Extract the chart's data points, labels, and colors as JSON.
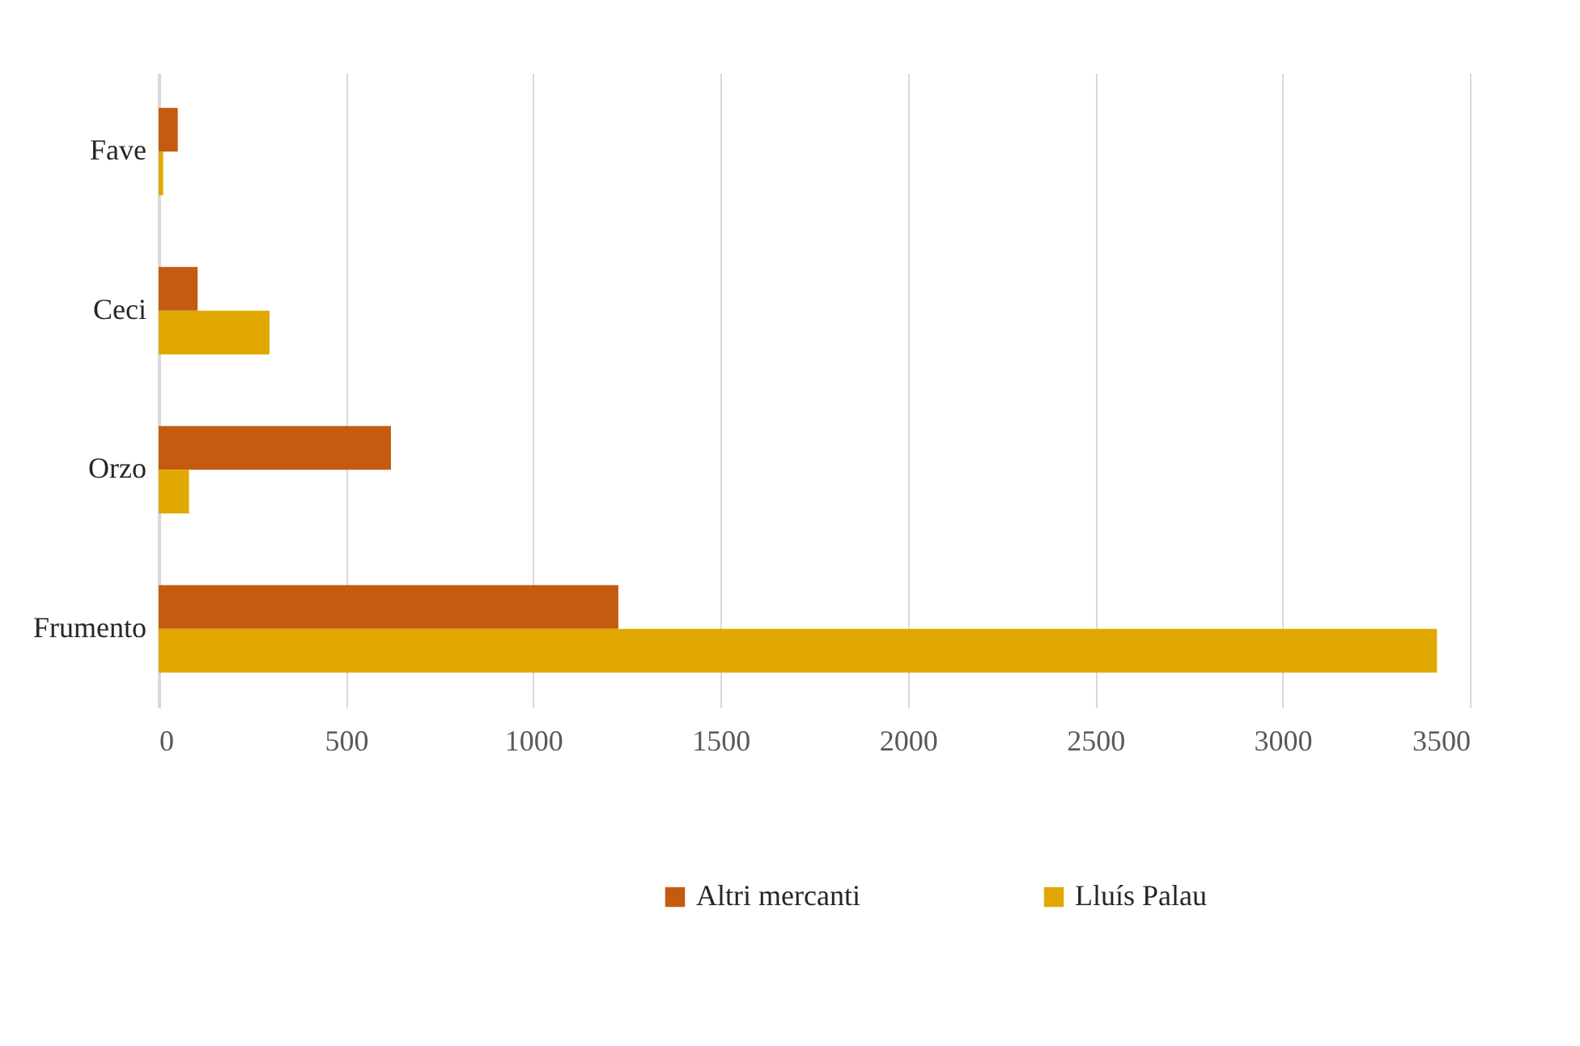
{
  "chart_data": {
    "type": "bar",
    "orientation": "horizontal",
    "categories": [
      "Fave",
      "Ceci",
      "Orzo",
      "Frumento"
    ],
    "series": [
      {
        "name": "Altri mercanti",
        "color": "#c55a11",
        "values": [
          51,
          104,
          620,
          1227
        ]
      },
      {
        "name": "Lluís Palau",
        "color": "#e0a800",
        "values": [
          12,
          296,
          81,
          3412
        ]
      }
    ],
    "xlim": [
      0,
      3500
    ],
    "xticks": [
      0,
      500,
      1000,
      1500,
      2000,
      2500,
      3000,
      3500
    ],
    "grid": "x",
    "legend": "bottom"
  }
}
